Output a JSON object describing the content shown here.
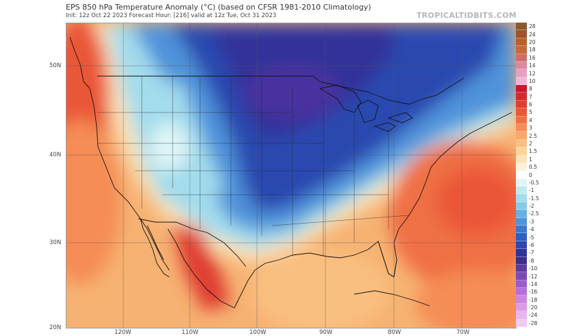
{
  "header": {
    "title": "EPS 850 hPa Temperature Anomaly (°C) (based on CFSR 1981-2010 Climatology)",
    "subtitle": "Init: 12z Oct 22 2023   Forecast Hour: [216]   valid at 12z Tue, Oct 31 2023",
    "watermark": "TROPICALTIDBITS.COM"
  },
  "axes": {
    "lat_labels": [
      "50N",
      "40N",
      "30N",
      "20N"
    ],
    "lon_labels": [
      "120W",
      "110W",
      "100W",
      "90W",
      "80W",
      "70W"
    ]
  },
  "colorbar": {
    "ticks": [
      "28",
      "24",
      "20",
      "18",
      "16",
      "14",
      "12",
      "10",
      "8",
      "7",
      "6",
      "5",
      "4",
      "3",
      "2.5",
      "2",
      "1.5",
      "1",
      "0.5",
      "0",
      "-0.5",
      "-1",
      "-1.5",
      "-2",
      "-2.5",
      "-3",
      "-4",
      "-5",
      "-6",
      "-7",
      "-8",
      "-10",
      "-12",
      "-14",
      "-16",
      "-18",
      "-20",
      "-24",
      "-28"
    ],
    "colors": [
      "#8a5a2f",
      "#a0522d",
      "#b8602a",
      "#c76a3a",
      "#d16d68",
      "#d98aa0",
      "#e6a0c0",
      "#f0b6d6",
      "#c9172c",
      "#d42a2c",
      "#e03d31",
      "#ea5737",
      "#f07044",
      "#f58d55",
      "#f8a868",
      "#f9bf80",
      "#fbd49c",
      "#fde3b8",
      "#fdf1da",
      "#ffffff",
      "#dff5f7",
      "#bfe9ef",
      "#a3dcec",
      "#86cae8",
      "#69b0e2",
      "#4f93da",
      "#3b77d0",
      "#2e5fc2",
      "#2c48b0",
      "#30339a",
      "#3a2f8a",
      "#5a3ba0",
      "#7a4ab8",
      "#9a5ccc",
      "#b570da",
      "#cc86e2",
      "#de9ce8",
      "#eab4ee",
      "#f2caf2"
    ]
  }
}
